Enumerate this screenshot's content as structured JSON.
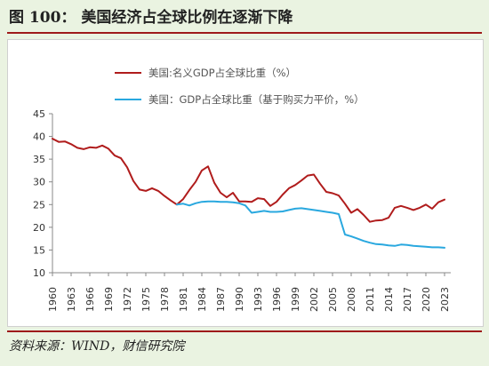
{
  "header": {
    "title": "图 100：  美国经济占全球比例在逐渐下降"
  },
  "footer": {
    "source": "资料来源：WIND，财信研究院"
  },
  "chart_data": {
    "type": "line",
    "title": "图 100：  美国经济占全球比例在逐渐下降",
    "xlabel": "",
    "ylabel": "",
    "ylim": [
      10,
      45
    ],
    "yticks": [
      10,
      15,
      20,
      25,
      30,
      35,
      40,
      45
    ],
    "xlim": [
      1960,
      2024
    ],
    "xticks": [
      "1960",
      "1963",
      "1966",
      "1969",
      "1972",
      "1975",
      "1978",
      "1981",
      "1984",
      "1987",
      "1990",
      "1993",
      "1996",
      "1999",
      "2002",
      "2005",
      "2008",
      "2011",
      "2014",
      "2017",
      "2020",
      "2023"
    ],
    "grid": false,
    "legend_position": "top",
    "series": [
      {
        "name": "美国:名义GDP占全球比重（%）",
        "color": "#b01c1c",
        "x": [
          1960,
          1961,
          1962,
          1963,
          1964,
          1965,
          1966,
          1967,
          1968,
          1969,
          1970,
          1971,
          1972,
          1973,
          1974,
          1975,
          1976,
          1977,
          1978,
          1979,
          1980,
          1981,
          1982,
          1983,
          1984,
          1985,
          1986,
          1987,
          1988,
          1989,
          1990,
          1991,
          1992,
          1993,
          1994,
          1995,
          1996,
          1997,
          1998,
          1999,
          2000,
          2001,
          2002,
          2003,
          2004,
          2005,
          2006,
          2007,
          2008,
          2009,
          2010,
          2011,
          2012,
          2013,
          2014,
          2015,
          2016,
          2017,
          2018,
          2019,
          2020,
          2021,
          2022,
          2023
        ],
        "values": [
          39.5,
          38.8,
          38.9,
          38.3,
          37.5,
          37.2,
          37.6,
          37.5,
          38.0,
          37.3,
          35.8,
          35.2,
          33.2,
          30.2,
          28.3,
          28.0,
          28.6,
          28.0,
          26.9,
          25.9,
          25.0,
          26.2,
          28.2,
          30.0,
          32.5,
          33.4,
          29.8,
          27.6,
          26.6,
          27.6,
          25.7,
          25.7,
          25.6,
          26.4,
          26.2,
          24.7,
          25.6,
          27.2,
          28.6,
          29.3,
          30.3,
          31.4,
          31.6,
          29.6,
          27.8,
          27.5,
          27.0,
          25.2,
          23.2,
          24.0,
          22.7,
          21.2,
          21.5,
          21.6,
          22.1,
          24.3,
          24.7,
          24.3,
          23.8,
          24.3,
          25.0,
          24.1,
          25.5,
          26.1
        ]
      },
      {
        "name": "美国：GDP占全球比重（基于购买力平价，%）",
        "color": "#29a8df",
        "x": [
          1980,
          1981,
          1982,
          1983,
          1984,
          1985,
          1986,
          1987,
          1988,
          1989,
          1990,
          1991,
          1992,
          1993,
          1994,
          1995,
          1996,
          1997,
          1998,
          1999,
          2000,
          2001,
          2002,
          2003,
          2004,
          2005,
          2006,
          2007,
          2008,
          2009,
          2010,
          2011,
          2012,
          2013,
          2014,
          2015,
          2016,
          2017,
          2018,
          2019,
          2020,
          2021,
          2022,
          2023
        ],
        "values": [
          25.0,
          25.2,
          24.8,
          25.3,
          25.6,
          25.7,
          25.7,
          25.6,
          25.6,
          25.5,
          25.3,
          24.8,
          23.2,
          23.4,
          23.6,
          23.4,
          23.4,
          23.5,
          23.8,
          24.1,
          24.2,
          24.0,
          23.8,
          23.6,
          23.4,
          23.2,
          22.9,
          18.4,
          18.0,
          17.5,
          17.0,
          16.6,
          16.3,
          16.2,
          16.0,
          15.9,
          16.2,
          16.1,
          15.9,
          15.8,
          15.7,
          15.6,
          15.6,
          15.5
        ]
      }
    ]
  }
}
